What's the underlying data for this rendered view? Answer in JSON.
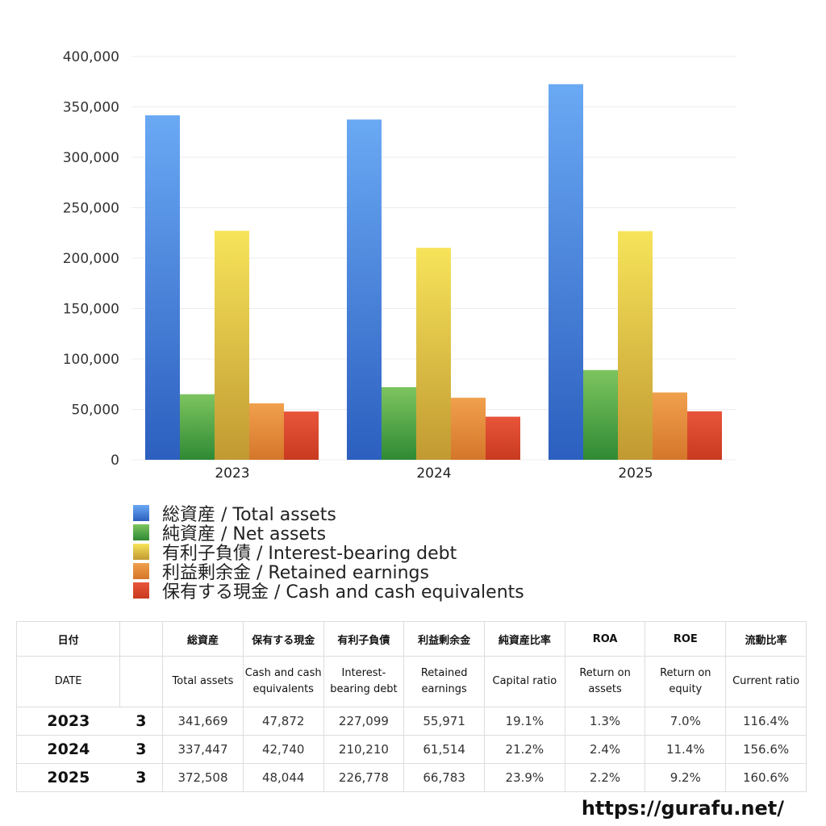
{
  "chart_data": {
    "type": "bar",
    "categories": [
      "2023",
      "2024",
      "2025"
    ],
    "ylim": [
      0,
      400000
    ],
    "yticks": [
      0,
      50000,
      100000,
      150000,
      200000,
      250000,
      300000,
      350000,
      400000
    ],
    "ytick_labels": [
      "0",
      "50,000",
      "100,000",
      "150,000",
      "200,000",
      "250,000",
      "300,000",
      "350,000",
      "400,000"
    ],
    "grid": true,
    "legend_position": "bottom",
    "series": [
      {
        "name": "総資産 / Total assets",
        "values": [
          341669,
          337447,
          372508
        ],
        "color_top": "#6aa9f4",
        "color_bottom": "#2c5fbf"
      },
      {
        "name": "純資産 / Net assets",
        "values": [
          65000,
          72000,
          89000
        ],
        "color_top": "#7dc45f",
        "color_bottom": "#2f8a34"
      },
      {
        "name": "有利子負債 / Interest-bearing debt",
        "values": [
          227099,
          210210,
          226778
        ],
        "color_top": "#f7e45a",
        "color_bottom": "#c19a32"
      },
      {
        "name": "利益剰余金 / Retained earnings",
        "values": [
          55971,
          61514,
          66783
        ],
        "color_top": "#f0a04d",
        "color_bottom": "#d5762a"
      },
      {
        "name": "保有する現金 /  Cash and cash equivalents",
        "values": [
          47872,
          42740,
          48044
        ],
        "color_top": "#e8553a",
        "color_bottom": "#c93a20"
      }
    ]
  },
  "table": {
    "headers_jp": [
      "日付",
      "",
      "総資産",
      "保有する現金",
      "有利子負債",
      "利益剰余金",
      "純資産比率",
      "ROA",
      "ROE",
      "流動比率"
    ],
    "headers_en": [
      "DATE",
      "",
      "Total assets",
      "Cash and cash equivalents",
      "Interest-bearing debt",
      "Retained earnings",
      "Capital ratio",
      "Return on assets",
      "Return on equity",
      "Current ratio"
    ],
    "rows": [
      [
        "2023",
        "3",
        "341,669",
        "47,872",
        "227,099",
        "55,971",
        "19.1%",
        "1.3%",
        "7.0%",
        "116.4%"
      ],
      [
        "2024",
        "3",
        "337,447",
        "42,740",
        "210,210",
        "61,514",
        "21.2%",
        "2.4%",
        "11.4%",
        "156.6%"
      ],
      [
        "2025",
        "3",
        "372,508",
        "48,044",
        "226,778",
        "66,783",
        "23.9%",
        "2.2%",
        "9.2%",
        "160.6%"
      ]
    ]
  },
  "footer": {
    "source": "https://gurafu.net/"
  }
}
